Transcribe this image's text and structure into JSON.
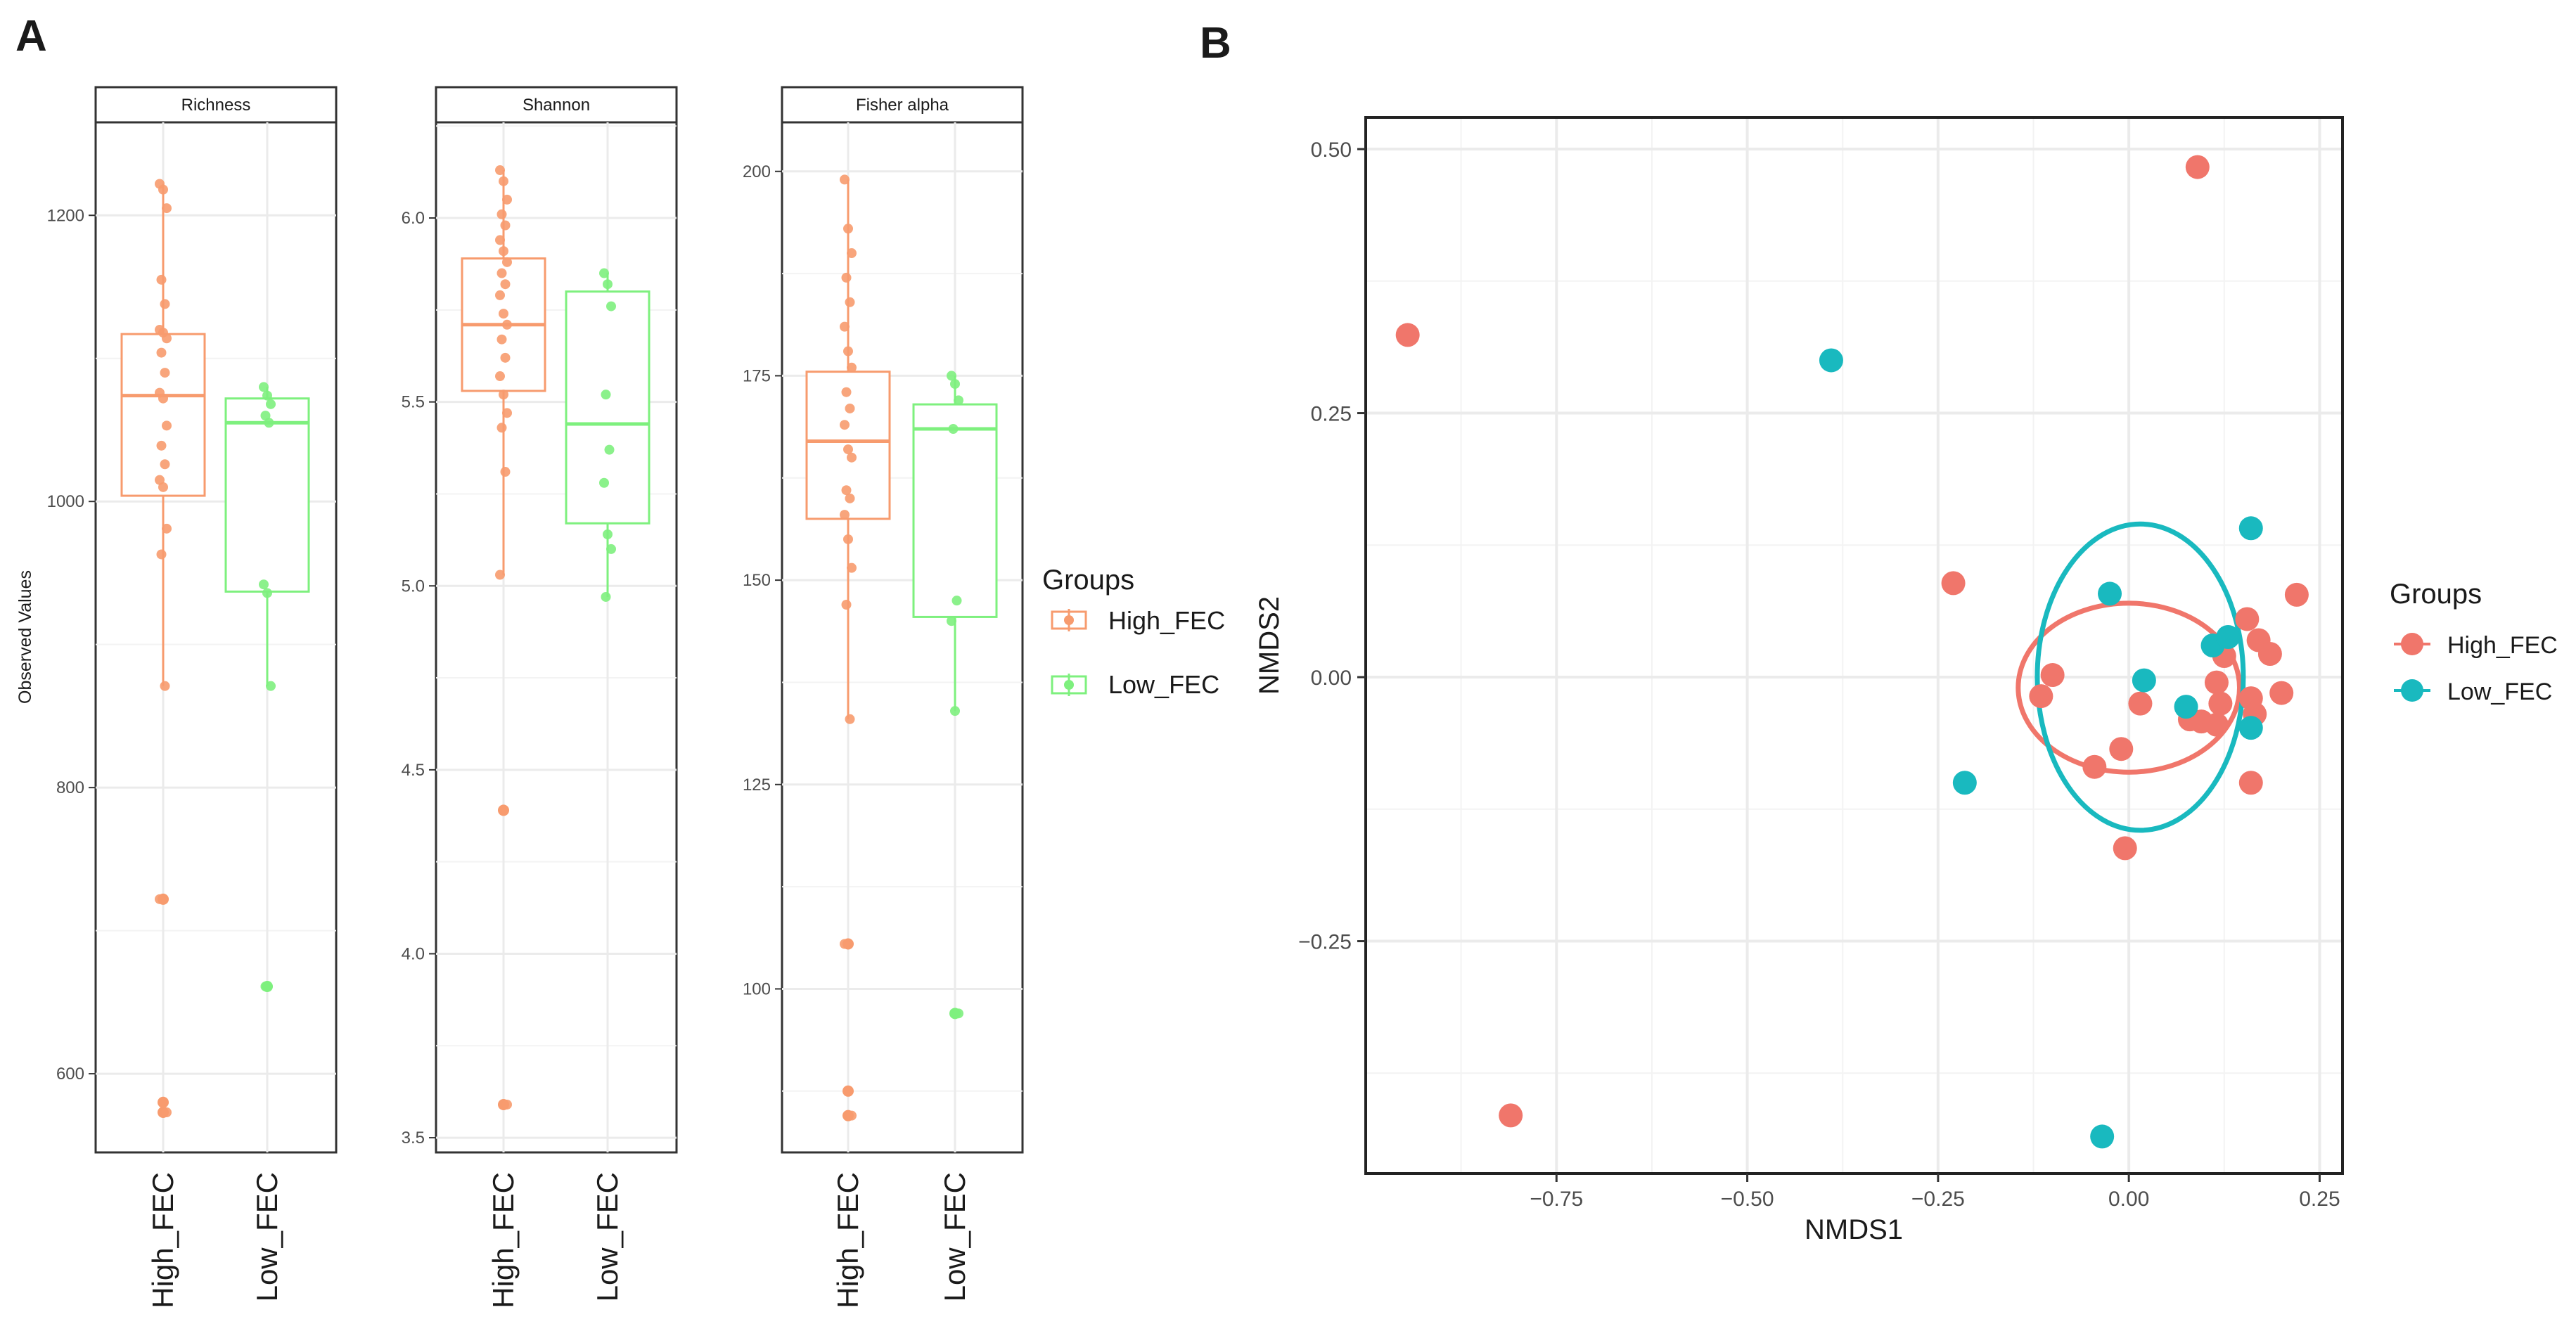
{
  "panel_labels": {
    "a": "A",
    "b": "B"
  },
  "colors": {
    "high_box": "#f79b6e",
    "low_box": "#7ef07e",
    "high_pt": "#f0766b",
    "low_pt": "#19b9bf",
    "grid": "#ebebeb",
    "axis": "#333333"
  },
  "chart_data": [
    {
      "type": "box",
      "title": "Richness",
      "ylabel": "Observed Values",
      "categories": [
        "High_FEC",
        "Low_FEC"
      ],
      "ylim": [
        545,
        1265
      ],
      "yticks": [
        600,
        800,
        1000,
        1200
      ],
      "boxes": [
        {
          "name": "High_FEC",
          "q1": 1004,
          "median": 1074,
          "q3": 1117,
          "lower": 871,
          "upper": 1222
        },
        {
          "name": "Low_FEC",
          "q1": 937,
          "median": 1055,
          "q3": 1072,
          "lower": 871,
          "upper": 1080
        }
      ],
      "outliers": [
        {
          "group": "High_FEC",
          "values": [
            722,
            580,
            573
          ]
        },
        {
          "group": "Low_FEC",
          "values": [
            661
          ]
        }
      ],
      "points": [
        {
          "group": "High_FEC",
          "values": [
            1222,
            1218,
            1205,
            1155,
            1138,
            1120,
            1118,
            1114,
            1104,
            1090,
            1076,
            1072,
            1053,
            1039,
            1026,
            1015,
            1010,
            981,
            963,
            871,
            722,
            580,
            573
          ]
        },
        {
          "group": "Low_FEC",
          "values": [
            1080,
            1074,
            1068,
            1060,
            1055,
            942,
            936,
            871,
            661
          ]
        }
      ]
    },
    {
      "type": "box",
      "title": "Shannon",
      "categories": [
        "High_FEC",
        "Low_FEC"
      ],
      "ylim": [
        3.46,
        6.26
      ],
      "yticks": [
        3.5,
        4.0,
        4.5,
        5.0,
        5.5,
        6.0
      ],
      "boxes": [
        {
          "name": "High_FEC",
          "q1": 5.53,
          "median": 5.71,
          "q3": 5.89,
          "lower": 5.03,
          "upper": 6.13
        },
        {
          "name": "Low_FEC",
          "q1": 5.17,
          "median": 5.44,
          "q3": 5.8,
          "lower": 4.97,
          "upper": 5.85
        }
      ],
      "outliers": [
        {
          "group": "High_FEC",
          "values": [
            4.39,
            3.59
          ]
        },
        {
          "group": "Low_FEC",
          "values": []
        }
      ],
      "points": [
        {
          "group": "High_FEC",
          "values": [
            6.13,
            6.1,
            6.05,
            6.01,
            5.98,
            5.94,
            5.91,
            5.88,
            5.85,
            5.82,
            5.79,
            5.74,
            5.71,
            5.67,
            5.62,
            5.57,
            5.52,
            5.47,
            5.43,
            5.31,
            5.03,
            4.39,
            3.59
          ]
        },
        {
          "group": "Low_FEC",
          "values": [
            5.85,
            5.82,
            5.76,
            5.52,
            5.37,
            5.28,
            5.14,
            5.1,
            4.97
          ]
        }
      ]
    },
    {
      "type": "box",
      "title": "Fisher alpha",
      "categories": [
        "High_FEC",
        "Low_FEC"
      ],
      "ylim": [
        80,
        206
      ],
      "yticks": [
        100,
        125,
        150,
        175,
        200
      ],
      "boxes": [
        {
          "name": "High_FEC",
          "q1": 157.5,
          "median": 167,
          "q3": 175.5,
          "lower": 133,
          "upper": 199
        },
        {
          "name": "Low_FEC",
          "q1": 145.5,
          "median": 168.5,
          "q3": 171.5,
          "lower": 134,
          "upper": 175
        }
      ],
      "outliers": [
        {
          "group": "High_FEC",
          "values": [
            105.5,
            87.5,
            84.5
          ]
        },
        {
          "group": "Low_FEC",
          "values": [
            97
          ]
        }
      ],
      "points": [
        {
          "group": "High_FEC",
          "values": [
            199,
            193,
            190,
            187,
            184,
            181,
            178,
            176,
            173,
            171,
            169,
            166,
            165,
            161,
            160,
            158,
            155,
            151.5,
            147,
            133,
            105.5,
            87.5,
            84.5
          ]
        },
        {
          "group": "Low_FEC",
          "values": [
            175,
            174,
            172,
            168.5,
            147.5,
            145,
            134,
            97
          ]
        }
      ]
    },
    {
      "type": "scatter",
      "xlabel": "NMDS1",
      "ylabel": "NMDS2",
      "xlim": [
        -1.0,
        0.28
      ],
      "ylim": [
        -0.47,
        0.53
      ],
      "xticks": [
        -0.75,
        -0.5,
        -0.25,
        0.0,
        0.25
      ],
      "xtick_labels": [
        "−0.75",
        "−0.50",
        "−0.25",
        "0.00",
        "0.25"
      ],
      "yticks": [
        -0.25,
        0.0,
        0.25,
        0.5
      ],
      "ytick_labels": [
        "−0.25",
        "0.00",
        "0.25",
        "0.50"
      ],
      "series": [
        {
          "name": "High_FEC",
          "points": [
            [
              0.09,
              0.483
            ],
            [
              -0.945,
              0.324
            ],
            [
              -0.81,
              -0.415
            ],
            [
              -0.23,
              0.089
            ],
            [
              -0.1,
              0.002
            ],
            [
              -0.115,
              -0.018
            ],
            [
              -0.045,
              -0.085
            ],
            [
              -0.01,
              -0.068
            ],
            [
              -0.005,
              -0.162
            ],
            [
              0.015,
              -0.025
            ],
            [
              0.08,
              -0.04
            ],
            [
              0.095,
              -0.042
            ],
            [
              0.115,
              -0.045
            ],
            [
              0.12,
              -0.025
            ],
            [
              0.115,
              -0.005
            ],
            [
              0.125,
              0.02
            ],
            [
              0.155,
              0.055
            ],
            [
              0.16,
              -0.02
            ],
            [
              0.165,
              -0.035
            ],
            [
              0.17,
              0.035
            ],
            [
              0.185,
              0.022
            ],
            [
              0.2,
              -0.015
            ],
            [
              0.22,
              0.078
            ],
            [
              0.16,
              -0.1
            ]
          ]
        },
        {
          "name": "Low_FEC",
          "points": [
            [
              -0.39,
              0.3
            ],
            [
              -0.215,
              -0.1
            ],
            [
              -0.025,
              0.079
            ],
            [
              0.02,
              -0.003
            ],
            [
              0.075,
              -0.028
            ],
            [
              0.11,
              0.03
            ],
            [
              0.13,
              0.038
            ],
            [
              0.16,
              0.141
            ],
            [
              0.16,
              -0.048
            ],
            [
              -0.035,
              -0.435
            ]
          ]
        }
      ],
      "ellipses": [
        {
          "group": "High_FEC",
          "cx": 0.0,
          "cy": -0.01,
          "rx": 0.145,
          "ry": 0.08
        },
        {
          "group": "Low_FEC",
          "cx": 0.015,
          "cy": 0.0,
          "rx": 0.135,
          "ry": 0.145
        }
      ]
    }
  ],
  "legends": {
    "boxplot": {
      "title": "Groups",
      "items": [
        "High_FEC",
        "Low_FEC"
      ]
    },
    "nmds": {
      "title": "Groups",
      "items": [
        "High_FEC",
        "Low_FEC"
      ]
    }
  }
}
